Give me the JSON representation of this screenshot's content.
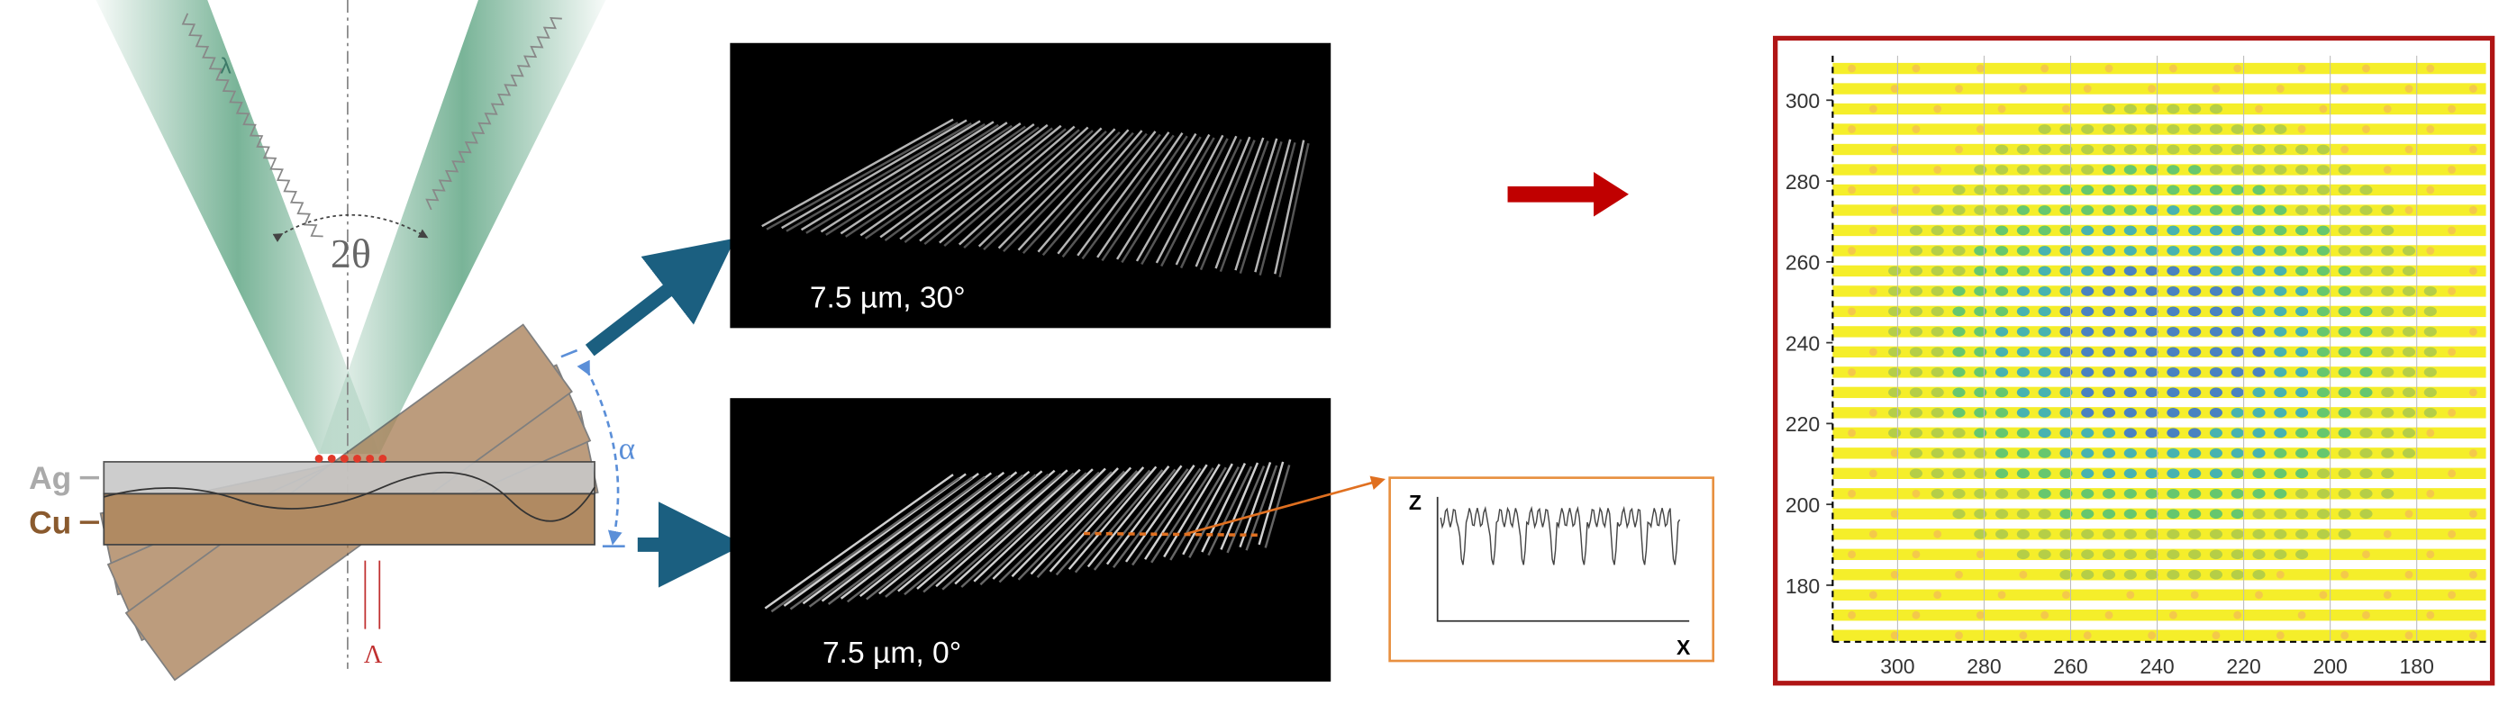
{
  "setup": {
    "wavelength": "λ",
    "angle": "2θ",
    "tilt": "α",
    "period": "Λ",
    "layers": [
      "Ag",
      "Cu"
    ]
  },
  "panels": [
    {
      "caption": "7.5 µm, 30°"
    },
    {
      "caption": "7.5 µm, 0°"
    }
  ],
  "profile": {
    "z_label": "Z",
    "x_label": "X"
  },
  "map": {
    "xlim": [
      315,
      164
    ],
    "ylim": [
      166,
      311
    ],
    "xticks": [
      300,
      280,
      260,
      240,
      220,
      200,
      180
    ],
    "yticks": [
      180,
      200,
      220,
      240,
      260,
      280,
      300
    ]
  }
}
